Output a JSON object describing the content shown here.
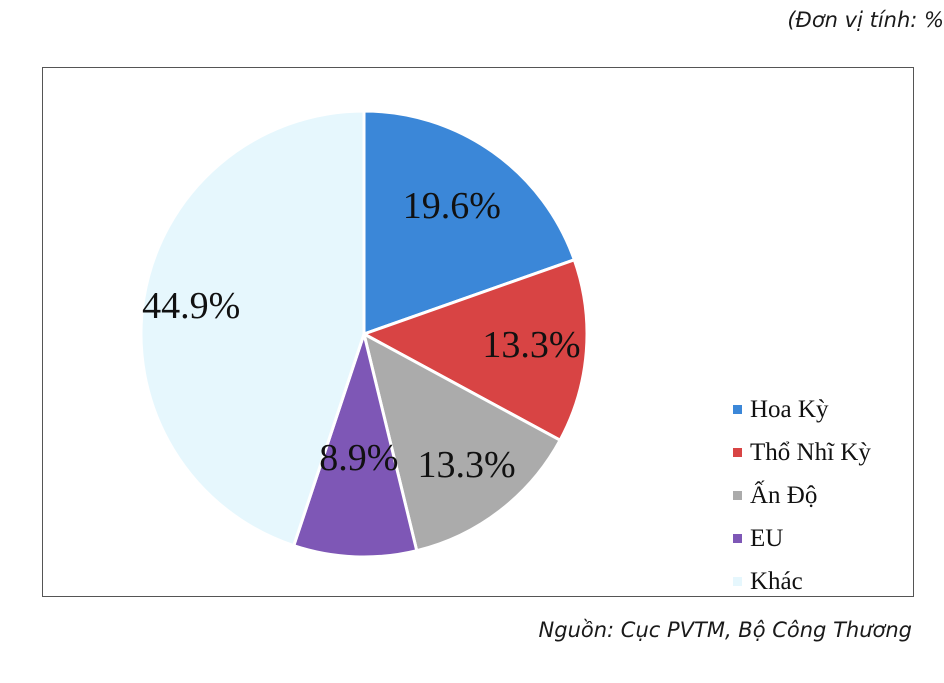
{
  "unit_note": "(Đơn vị tính: %",
  "source_note": "Nguồn: Cục PVTM, Bộ Công Thương",
  "chart_data": {
    "type": "pie",
    "title": "",
    "unit": "%",
    "slices": [
      {
        "name": "Hoa Kỳ",
        "value": 19.6,
        "label": "19.6%",
        "color": "#3B87D8"
      },
      {
        "name": "Thổ Nhĩ Kỳ",
        "value": 13.3,
        "label": "13.3%",
        "color": "#D84444"
      },
      {
        "name": "Ấn Độ",
        "value": 13.3,
        "label": "13.3%",
        "color": "#ABABAB"
      },
      {
        "name": "EU",
        "value": 8.9,
        "label": "8.9%",
        "color": "#7E57B6"
      },
      {
        "name": "Khác",
        "value": 44.9,
        "label": "44.9%",
        "color": "#E6F7FD"
      }
    ],
    "legend_position": "right",
    "start_angle": "12 o'clock",
    "direction": "clockwise"
  }
}
